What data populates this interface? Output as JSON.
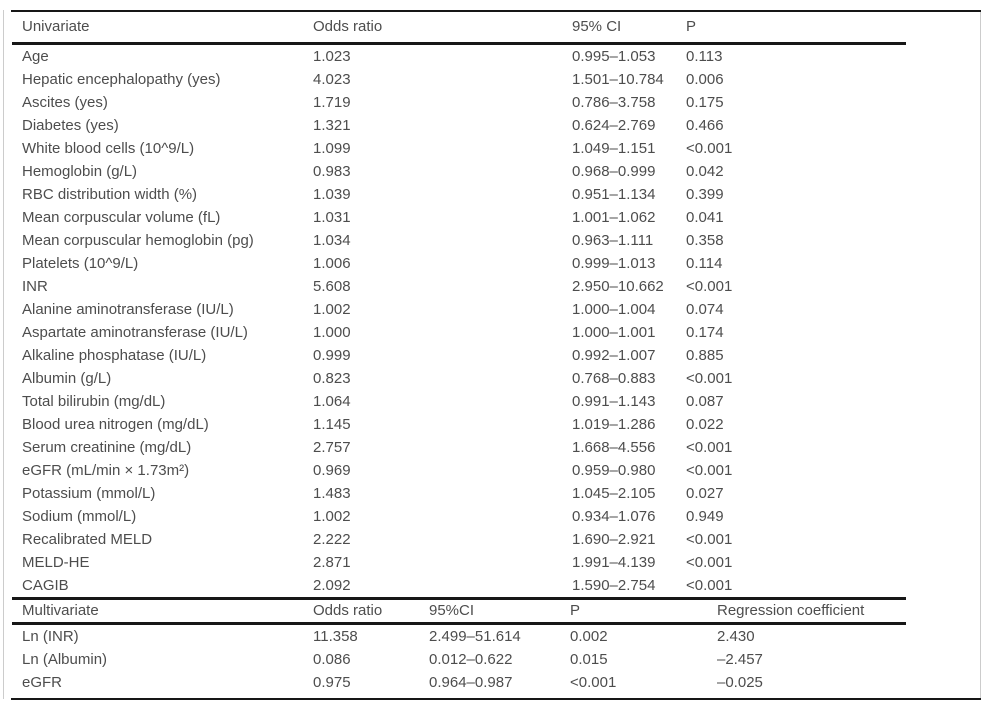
{
  "colors": {
    "text": "#4d4d4d",
    "rule": "#171717",
    "frame": "#cccccc",
    "background": "#ffffff"
  },
  "univariate": {
    "headers": [
      "Univariate",
      "Odds ratio",
      "95% CI",
      "P"
    ],
    "rows": [
      {
        "variable": "Age",
        "odds_ratio": "1.023",
        "ci": "0.995–1.053",
        "p": "0.113"
      },
      {
        "variable": "Hepatic encephalopathy (yes)",
        "odds_ratio": "4.023",
        "ci": "1.501–10.784",
        "p": "0.006"
      },
      {
        "variable": "Ascites (yes)",
        "odds_ratio": "1.719",
        "ci": "0.786–3.758",
        "p": "0.175"
      },
      {
        "variable": "Diabetes (yes)",
        "odds_ratio": "1.321",
        "ci": "0.624–2.769",
        "p": "0.466"
      },
      {
        "variable": "White blood cells (10^9/L)",
        "odds_ratio": "1.099",
        "ci": "1.049–1.151",
        "p": "<0.001"
      },
      {
        "variable": "Hemoglobin (g/L)",
        "odds_ratio": "0.983",
        "ci": "0.968–0.999",
        "p": "0.042"
      },
      {
        "variable": "RBC distribution width (%)",
        "odds_ratio": "1.039",
        "ci": "0.951–1.134",
        "p": "0.399"
      },
      {
        "variable": "Mean corpuscular volume (fL)",
        "odds_ratio": "1.031",
        "ci": "1.001–1.062",
        "p": "0.041"
      },
      {
        "variable": "Mean corpuscular hemoglobin (pg)",
        "odds_ratio": "1.034",
        "ci": "0.963–1.111",
        "p": "0.358"
      },
      {
        "variable": "Platelets (10^9/L)",
        "odds_ratio": "1.006",
        "ci": "0.999–1.013",
        "p": "0.114"
      },
      {
        "variable": "INR",
        "odds_ratio": "5.608",
        "ci": "2.950–10.662",
        "p": "<0.001"
      },
      {
        "variable": "Alanine aminotransferase (IU/L)",
        "odds_ratio": "1.002",
        "ci": "1.000–1.004",
        "p": "0.074"
      },
      {
        "variable": "Aspartate aminotransferase (IU/L)",
        "odds_ratio": "1.000",
        "ci": "1.000–1.001",
        "p": "0.174"
      },
      {
        "variable": "Alkaline phosphatase (IU/L)",
        "odds_ratio": "0.999",
        "ci": "0.992–1.007",
        "p": "0.885"
      },
      {
        "variable": "Albumin (g/L)",
        "odds_ratio": "0.823",
        "ci": "0.768–0.883",
        "p": "<0.001"
      },
      {
        "variable": "Total bilirubin (mg/dL)",
        "odds_ratio": "1.064",
        "ci": "0.991–1.143",
        "p": "0.087"
      },
      {
        "variable": "Blood urea nitrogen (mg/dL)",
        "odds_ratio": "1.145",
        "ci": "1.019–1.286",
        "p": "0.022"
      },
      {
        "variable": "Serum creatinine (mg/dL)",
        "odds_ratio": "2.757",
        "ci": "1.668–4.556",
        "p": "<0.001"
      },
      {
        "variable": "eGFR (mL/min × 1.73m²)",
        "odds_ratio": "0.969",
        "ci": "0.959–0.980",
        "p": "<0.001"
      },
      {
        "variable": "Potassium (mmol/L)",
        "odds_ratio": "1.483",
        "ci": "1.045–2.105",
        "p": "0.027"
      },
      {
        "variable": "Sodium (mmol/L)",
        "odds_ratio": "1.002",
        "ci": "0.934–1.076",
        "p": "0.949"
      },
      {
        "variable": "Recalibrated MELD",
        "odds_ratio": "2.222",
        "ci": "1.690–2.921",
        "p": "<0.001"
      },
      {
        "variable": "MELD-HE",
        "odds_ratio": "2.871",
        "ci": "1.991–4.139",
        "p": "<0.001"
      },
      {
        "variable": "CAGIB",
        "odds_ratio": "2.092",
        "ci": "1.590–2.754",
        "p": "<0.001"
      }
    ]
  },
  "multivariate": {
    "headers": [
      "Multivariate",
      "Odds ratio",
      "95%CI",
      "P",
      "Regression coefficient"
    ],
    "rows": [
      {
        "variable": "Ln (INR)",
        "odds_ratio": "11.358",
        "ci": "2.499–51.614",
        "p": "0.002",
        "regression_coefficient": "2.430"
      },
      {
        "variable": "Ln (Albumin)",
        "odds_ratio": "0.086",
        "ci": "0.012–0.622",
        "p": "0.015",
        "regression_coefficient": "–2.457"
      },
      {
        "variable": "eGFR",
        "odds_ratio": "0.975",
        "ci": "0.964–0.987",
        "p": "<0.001",
        "regression_coefficient": "–0.025"
      }
    ]
  }
}
